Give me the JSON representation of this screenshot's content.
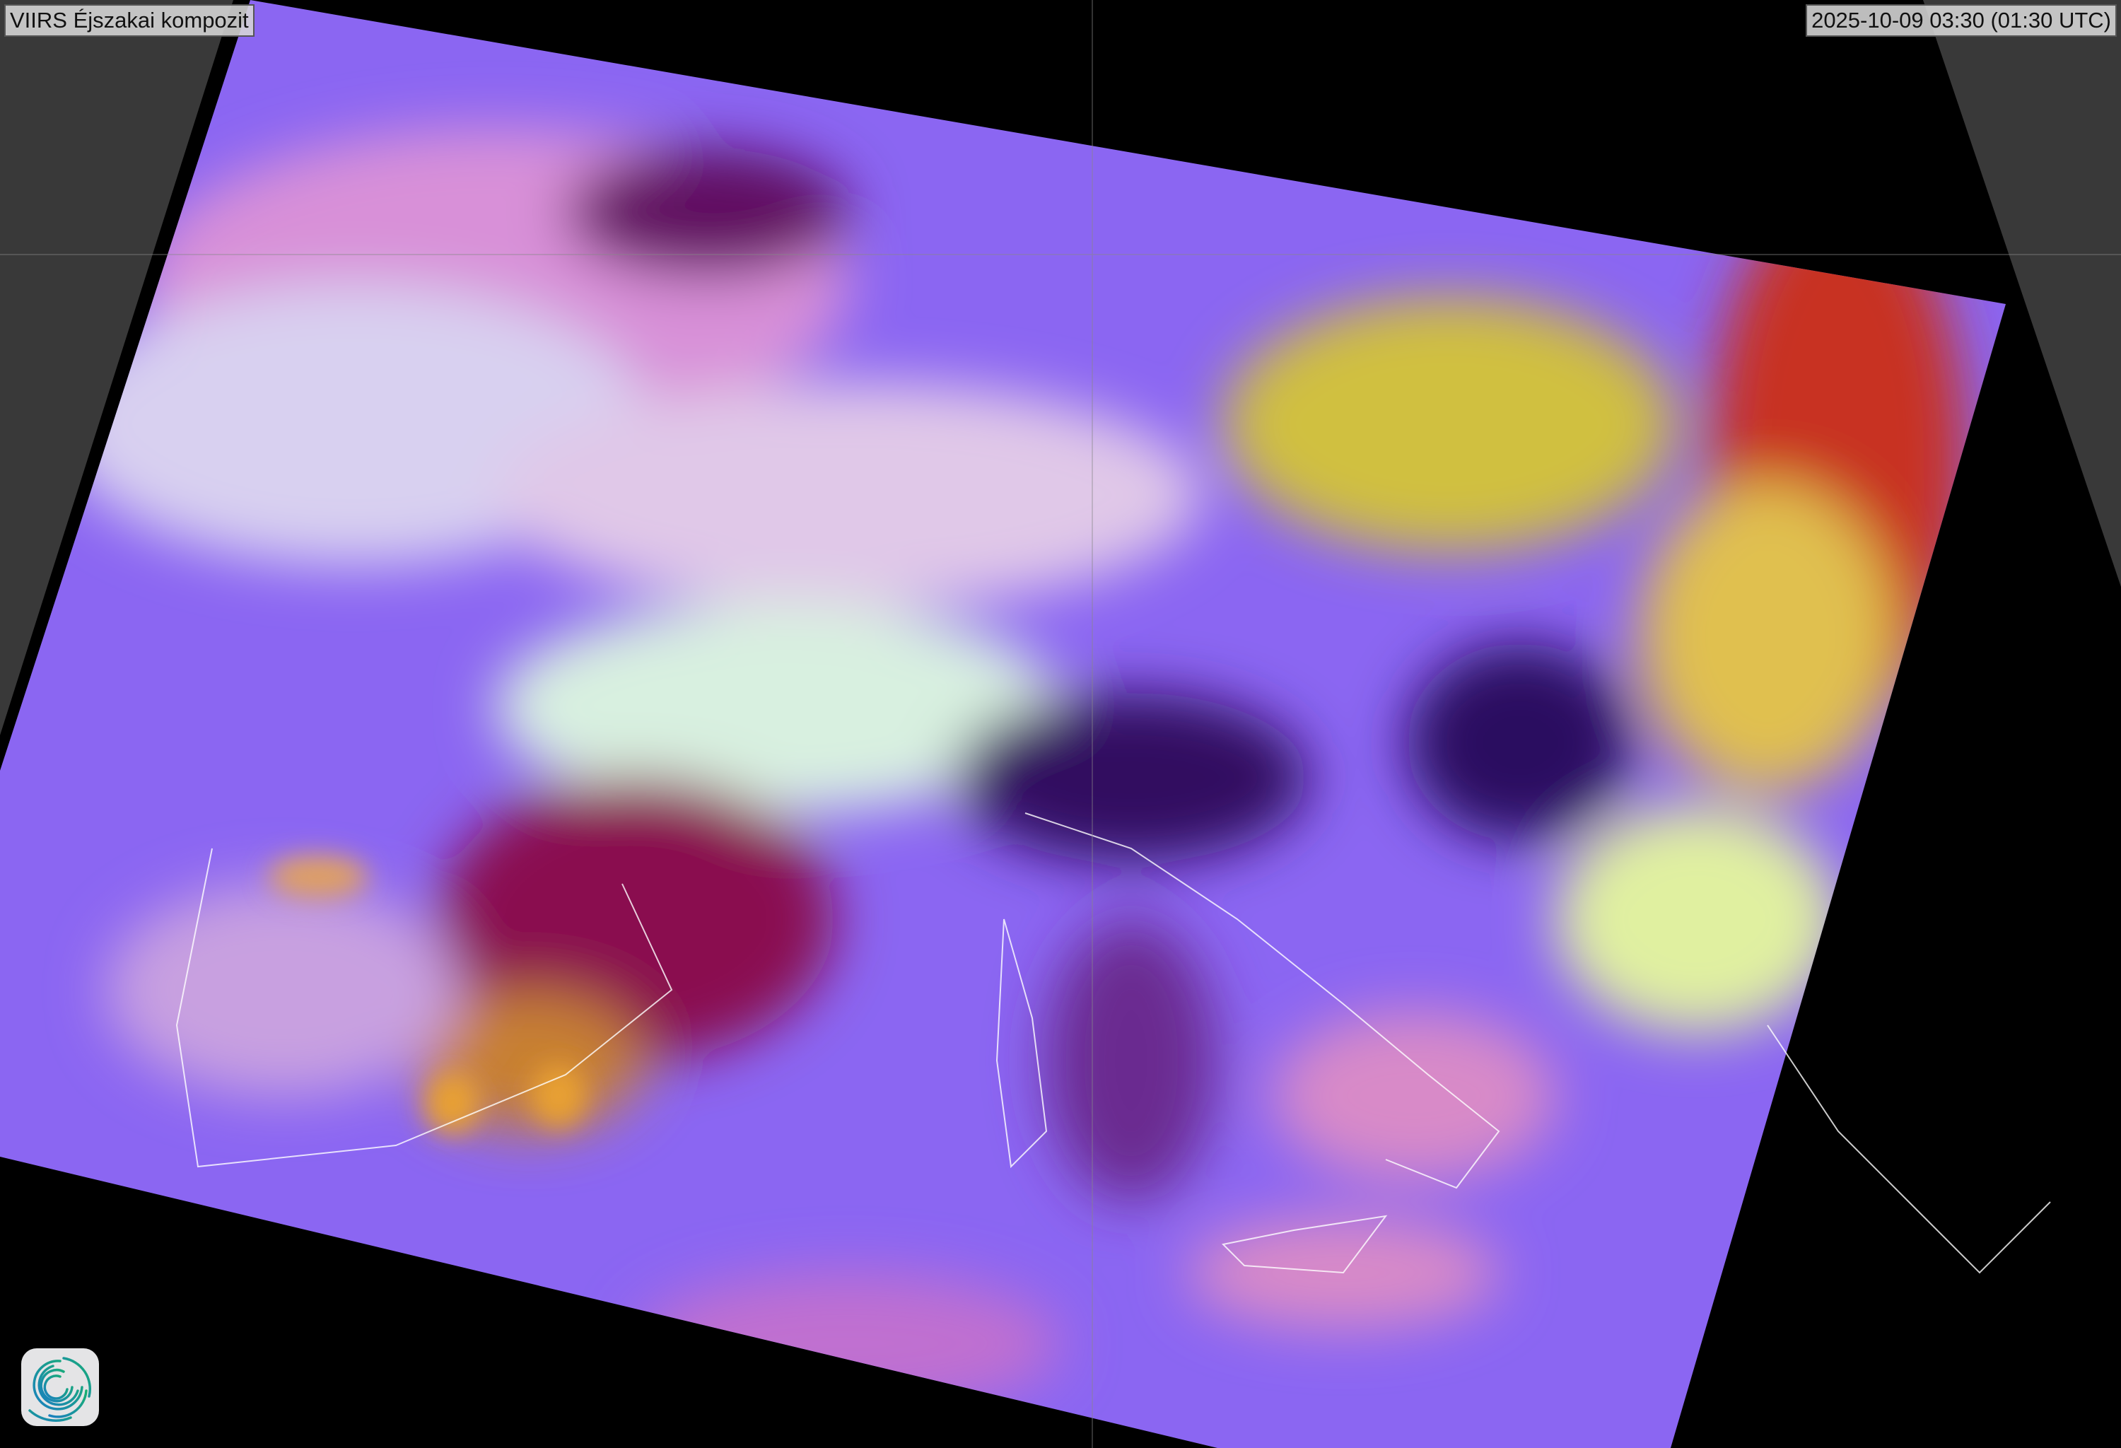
{
  "map": {
    "title": "VIIRS Éjszakai kompozit",
    "timestamp": "2025-10-09 03:30 (01:30 UTC)",
    "logo": "swirl-logo",
    "colors": {
      "background_outside_projection": "#393939",
      "globe_background": "#000000",
      "coastline": "#ffffff",
      "clear_sea": "#7a5cf0",
      "land": "#d88ac8",
      "low_cloud": "#c8f0d8",
      "high_cloud": "#8a1050",
      "convective": "#e0a040"
    }
  }
}
